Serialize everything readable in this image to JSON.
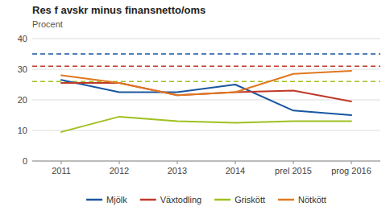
{
  "chart_data": {
    "type": "line",
    "title": "Res f avskr minus finansnetto/oms",
    "subtitle": "Procent",
    "categories": [
      "2011",
      "2012",
      "2013",
      "2014",
      "prel 2015",
      "prog 2016"
    ],
    "series": [
      {
        "name": "Mjölk",
        "color": "#1a56a0",
        "values": [
          26.5,
          22.5,
          22.5,
          25.0,
          16.5,
          15.0
        ]
      },
      {
        "name": "Växtodling",
        "color": "#c0392b",
        "values": [
          25.5,
          25.5,
          21.5,
          22.5,
          23.0,
          19.5
        ]
      },
      {
        "name": "Griskött",
        "color": "#a0c020",
        "values": [
          9.5,
          14.5,
          13.0,
          12.5,
          13.0,
          13.0
        ]
      },
      {
        "name": "Nötkött",
        "color": "#e07820",
        "values": [
          28.0,
          25.5,
          21.5,
          22.5,
          28.5,
          29.5
        ]
      }
    ],
    "reference_lines": [
      {
        "y": 35.0,
        "color": "#1a56a0",
        "line_style": "dashed"
      },
      {
        "y": 31.0,
        "color": "#c0392b",
        "line_style": "dashed"
      },
      {
        "y": 26.0,
        "color": "#a0c020",
        "line_style": "dashed"
      }
    ],
    "ylim": [
      0,
      40
    ],
    "yticks": [
      0,
      10,
      20,
      30,
      40
    ],
    "grid": true,
    "legend": "bottom"
  }
}
